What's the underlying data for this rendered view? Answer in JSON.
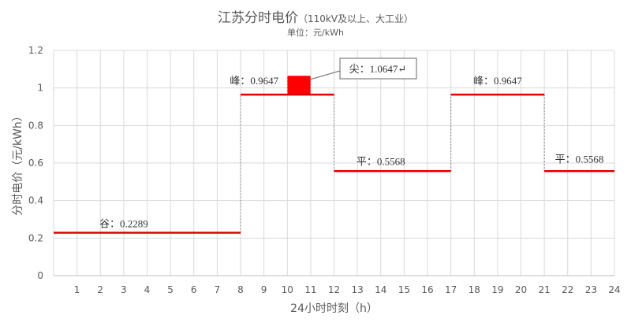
{
  "chart_data": {
    "type": "line",
    "step": true,
    "title": "江苏分时电价",
    "title_note": "（110kV及以上、大工业）",
    "subtitle": "单位：元/kWh",
    "xlabel": "24小时时刻（h）",
    "ylabel": "分时电价（元/kWh）",
    "xlim": [
      0,
      24
    ],
    "ylim": [
      0,
      1.2
    ],
    "xticks": [
      1,
      2,
      3,
      4,
      5,
      6,
      7,
      8,
      9,
      10,
      11,
      12,
      13,
      14,
      15,
      16,
      17,
      18,
      19,
      20,
      21,
      22,
      23,
      24
    ],
    "yticks": [
      "0",
      "0.2",
      "0.4",
      "0.6",
      "0.8",
      "1",
      "1.2"
    ],
    "grid": true,
    "line_color": "#E00000",
    "segments": [
      {
        "start": 0,
        "end": 8,
        "value": 0.2289,
        "label": "谷：0.2289"
      },
      {
        "start": 8,
        "end": 12,
        "value": 0.9647,
        "label": "峰：0.9647"
      },
      {
        "start": 12,
        "end": 17,
        "value": 0.5568,
        "label": "平：0.5568"
      },
      {
        "start": 17,
        "end": 21,
        "value": 0.9647,
        "label": "峰：0.9647"
      },
      {
        "start": 21,
        "end": 24,
        "value": 0.5568,
        "label": "平：0.5568"
      }
    ],
    "sharp": {
      "start": 10,
      "end": 11,
      "value": 1.0647,
      "label": "尖：1.0647↵"
    }
  }
}
